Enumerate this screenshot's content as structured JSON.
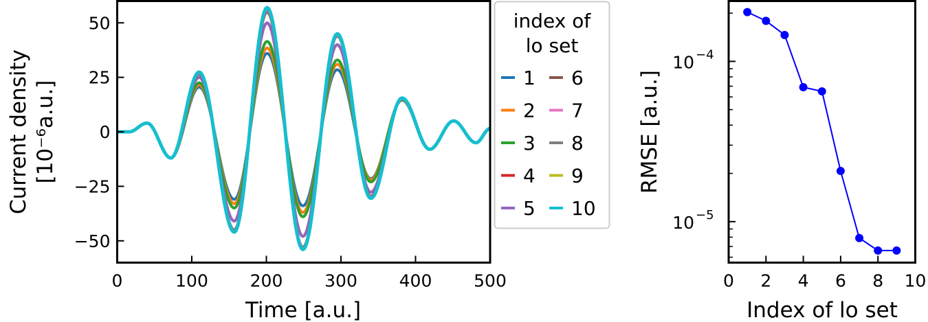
{
  "chart_data": [
    {
      "type": "line",
      "title": "",
      "xlabel": "Time [a.u.]",
      "ylabel_line1": "Current density",
      "ylabel_line2": "[10⁻⁶a.u.]",
      "xlim": [
        0,
        500
      ],
      "ylim": [
        -60,
        60
      ],
      "xticks": [
        0,
        100,
        200,
        300,
        400,
        500
      ],
      "yticks": [
        -50,
        -25,
        0,
        25,
        50
      ],
      "ytick_labels": [
        "−50",
        "−25",
        "0",
        "25",
        "50"
      ],
      "grid": false,
      "legend": {
        "title_line1": "index of",
        "title_line2": "lo set",
        "position": "outside right",
        "columns": 2
      },
      "x_extrema": [
        0,
        16,
        40,
        72,
        110,
        157,
        201,
        249,
        295,
        340,
        382,
        419,
        451,
        481,
        500
      ],
      "series": [
        {
          "name": "1",
          "color": "#1f77b4",
          "values": [
            0,
            0,
            4,
            -12,
            20.5,
            -31,
            36,
            -34,
            28.5,
            -21.5,
            14.5,
            -8,
            5,
            -5,
            1.5
          ]
        },
        {
          "name": "2",
          "color": "#ff7f0e",
          "values": [
            0,
            0,
            4,
            -12,
            21.5,
            -33,
            38.5,
            -37,
            31,
            -22,
            14.8,
            -8,
            5,
            -5,
            1.5
          ]
        },
        {
          "name": "3",
          "color": "#2ca02c",
          "values": [
            0,
            0,
            4,
            -12,
            22.5,
            -35,
            41.5,
            -39,
            33,
            -23,
            15,
            -8,
            5,
            -5,
            1.5
          ]
        },
        {
          "name": "4",
          "color": "#d62728",
          "values": [
            0,
            0,
            4,
            -12,
            25,
            -41,
            50,
            -48,
            40,
            -27.7,
            15.3,
            -8,
            5,
            -5,
            1.5
          ]
        },
        {
          "name": "5",
          "color": "#9467bd",
          "values": [
            0,
            0,
            4,
            -12,
            25,
            -41,
            50,
            -48,
            40,
            -27.7,
            15.3,
            -8,
            5,
            -5,
            1.5
          ]
        },
        {
          "name": "6",
          "color": "#8c564b",
          "values": [
            0,
            0,
            4,
            -12,
            26.5,
            -45,
            55,
            -53,
            44,
            -29.5,
            15.5,
            -8,
            5,
            -5,
            1.5
          ]
        },
        {
          "name": "7",
          "color": "#e377c2",
          "values": [
            0,
            0,
            4,
            -12,
            27,
            -45.5,
            56,
            -53.5,
            44.5,
            -30,
            15.5,
            -8,
            5,
            -5,
            1.5
          ]
        },
        {
          "name": "8",
          "color": "#7f7f7f",
          "values": [
            0,
            0,
            4,
            -12,
            27.2,
            -45.8,
            56.5,
            -53.8,
            44.8,
            -30.2,
            15.5,
            -8,
            5,
            -5,
            1.5
          ]
        },
        {
          "name": "9",
          "color": "#bcbd22",
          "values": [
            0,
            0,
            4,
            -12,
            27.3,
            -46,
            56.8,
            -54,
            45,
            -30.4,
            15.5,
            -8,
            5,
            -5,
            1.5
          ]
        },
        {
          "name": "10",
          "color": "#17becf",
          "values": [
            0,
            0,
            4,
            -12,
            27.4,
            -46,
            57,
            -54,
            45,
            -30.5,
            15.5,
            -8,
            5,
            -5,
            1.5
          ]
        }
      ]
    },
    {
      "type": "line",
      "title": "",
      "xlabel": "Index of lo set",
      "ylabel": "RMSE [a.u.]",
      "yscale": "log",
      "xlim": [
        0,
        10
      ],
      "ylim": [
        5.55e-06,
        0.000238
      ],
      "xticks": [
        0,
        2,
        4,
        6,
        8,
        10
      ],
      "yticks": [
        1e-05,
        0.0001
      ],
      "ytick_labels": [
        {
          "base": "10",
          "exp": "−5"
        },
        {
          "base": "10",
          "exp": "−4"
        }
      ],
      "grid": false,
      "marker": "circle",
      "color": "#0000ff",
      "x": [
        1,
        2,
        3,
        4,
        5,
        6,
        7,
        8,
        9
      ],
      "values": [
        0.000203,
        0.000179,
        0.000146,
        6.9e-05,
        6.5e-05,
        2.07e-05,
        7.9e-06,
        6.6e-06,
        6.6e-06
      ]
    }
  ]
}
